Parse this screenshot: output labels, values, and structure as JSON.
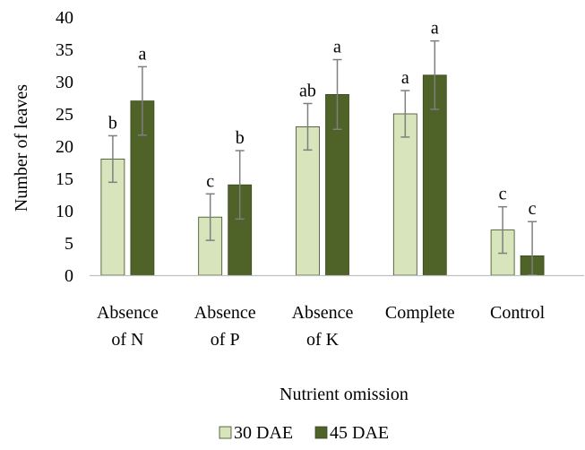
{
  "chart_data": {
    "type": "bar",
    "xlabel": "Nutrient omission",
    "ylabel": "Number of leaves",
    "ylim": [
      0,
      40
    ],
    "yticks": [
      "0",
      "5",
      "10",
      "15",
      "20",
      "25",
      "30",
      "35",
      "40"
    ],
    "categories": [
      [
        "Absence",
        "of N"
      ],
      [
        "Absence",
        "of P"
      ],
      [
        "Absence",
        "of K"
      ],
      [
        "Complete"
      ],
      [
        "Control"
      ]
    ],
    "series": [
      {
        "name": "30 DAE",
        "color": "#d8e4bc",
        "values": [
          18,
          9,
          23,
          25,
          7
        ],
        "errors": [
          3.6,
          3.6,
          3.6,
          3.6,
          3.6
        ],
        "letters": [
          "b",
          "c",
          "ab",
          "a",
          "c"
        ]
      },
      {
        "name": "45 DAE",
        "color": "#4f6228",
        "values": [
          27,
          14,
          28,
          31,
          3
        ],
        "errors": [
          5.3,
          5.3,
          5.4,
          5.3,
          5.3
        ],
        "letters": [
          "a",
          "b",
          "a",
          "a",
          "c"
        ]
      }
    ],
    "grid": false,
    "legend": "bottom"
  }
}
